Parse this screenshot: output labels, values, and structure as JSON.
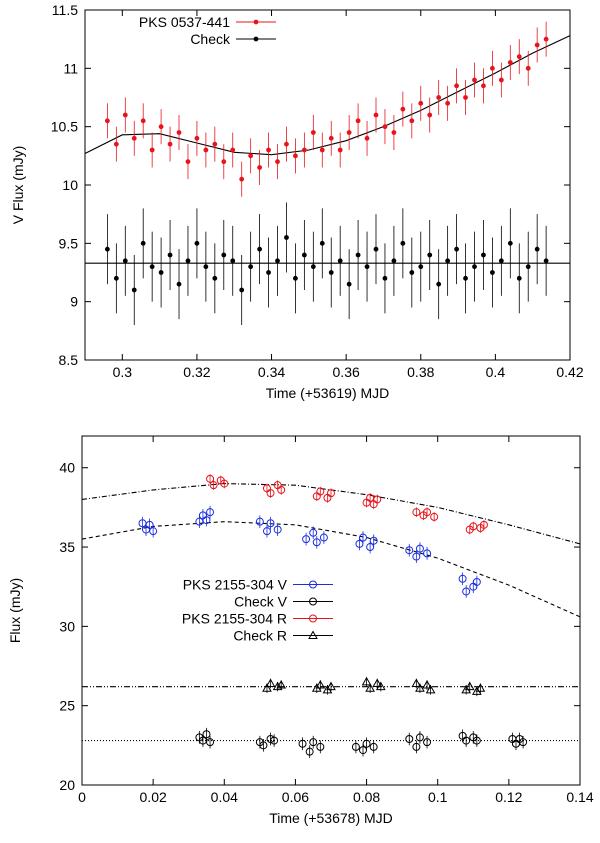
{
  "chart_data": [
    {
      "type": "scatter",
      "xlabel": "Time (+53619) MJD",
      "ylabel": "V Flux (mJy)",
      "xlim": [
        0.29,
        0.42
      ],
      "xticks": [
        0.3,
        0.32,
        0.34,
        0.36,
        0.38,
        0.4,
        0.42
      ],
      "ylim": [
        8.5,
        11.5
      ],
      "yticks": [
        8.5,
        9,
        9.5,
        10,
        10.5,
        11,
        11.5
      ],
      "legend": "upper left",
      "series": [
        {
          "name": "PKS 0537-441",
          "color": "#e8141c",
          "marker": "dot",
          "error": 0.15,
          "x": [
            0.296,
            0.2984,
            0.3008,
            0.3032,
            0.3056,
            0.308,
            0.3104,
            0.3128,
            0.3152,
            0.3176,
            0.32,
            0.3224,
            0.3248,
            0.3272,
            0.3296,
            0.332,
            0.3344,
            0.3368,
            0.3392,
            0.3416,
            0.344,
            0.3464,
            0.3488,
            0.3512,
            0.3536,
            0.356,
            0.3584,
            0.3608,
            0.3632,
            0.3656,
            0.368,
            0.3704,
            0.3728,
            0.3752,
            0.3776,
            0.38,
            0.3824,
            0.3848,
            0.3872,
            0.3896,
            0.392,
            0.3944,
            0.3968,
            0.3992,
            0.4016,
            0.404,
            0.4064,
            0.4088,
            0.4112,
            0.4136
          ],
          "values": [
            10.55,
            10.35,
            10.6,
            10.4,
            10.55,
            10.3,
            10.5,
            10.35,
            10.45,
            10.2,
            10.4,
            10.3,
            10.35,
            10.2,
            10.3,
            10.05,
            10.25,
            10.15,
            10.3,
            10.2,
            10.35,
            10.25,
            10.3,
            10.45,
            10.3,
            10.4,
            10.3,
            10.45,
            10.55,
            10.4,
            10.6,
            10.5,
            10.45,
            10.65,
            10.55,
            10.7,
            10.6,
            10.75,
            10.7,
            10.85,
            10.75,
            10.9,
            10.85,
            11.0,
            10.9,
            11.05,
            11.1,
            11.0,
            11.2,
            11.25
          ]
        },
        {
          "name": "Check",
          "color": "#000000",
          "marker": "dot",
          "error": 0.3,
          "x": [
            0.296,
            0.2984,
            0.3008,
            0.3032,
            0.3056,
            0.308,
            0.3104,
            0.3128,
            0.3152,
            0.3176,
            0.32,
            0.3224,
            0.3248,
            0.3272,
            0.3296,
            0.332,
            0.3344,
            0.3368,
            0.3392,
            0.3416,
            0.344,
            0.3464,
            0.3488,
            0.3512,
            0.3536,
            0.356,
            0.3584,
            0.3608,
            0.3632,
            0.3656,
            0.368,
            0.3704,
            0.3728,
            0.3752,
            0.3776,
            0.38,
            0.3824,
            0.3848,
            0.3872,
            0.3896,
            0.392,
            0.3944,
            0.3968,
            0.3992,
            0.4016,
            0.404,
            0.4064,
            0.4088,
            0.4112,
            0.4136
          ],
          "values": [
            9.45,
            9.2,
            9.35,
            9.1,
            9.5,
            9.3,
            9.25,
            9.4,
            9.15,
            9.35,
            9.5,
            9.3,
            9.2,
            9.4,
            9.35,
            9.1,
            9.3,
            9.45,
            9.25,
            9.35,
            9.55,
            9.2,
            9.4,
            9.3,
            9.5,
            9.25,
            9.35,
            9.15,
            9.4,
            9.3,
            9.45,
            9.2,
            9.35,
            9.5,
            9.25,
            9.3,
            9.4,
            9.15,
            9.35,
            9.45,
            9.2,
            9.3,
            9.4,
            9.25,
            9.35,
            9.5,
            9.2,
            9.3,
            9.45,
            9.35
          ]
        }
      ],
      "fits": [
        {
          "color": "#000000",
          "dash": "none",
          "x": [
            0.29,
            0.3,
            0.31,
            0.32,
            0.33,
            0.34,
            0.35,
            0.36,
            0.37,
            0.38,
            0.39,
            0.4,
            0.41,
            0.42
          ],
          "values": [
            10.27,
            10.43,
            10.44,
            10.36,
            10.28,
            10.26,
            10.3,
            10.38,
            10.5,
            10.64,
            10.8,
            10.96,
            11.13,
            11.28
          ]
        },
        {
          "color": "#000000",
          "dash": "none",
          "x": [
            0.29,
            0.42
          ],
          "values": [
            9.33,
            9.33
          ]
        }
      ]
    },
    {
      "type": "scatter",
      "xlabel": "Time (+53678) MJD",
      "ylabel": "Flux (mJy)",
      "xlim": [
        0,
        0.14
      ],
      "xticks": [
        0,
        0.02,
        0.04,
        0.06,
        0.08,
        0.1,
        0.12,
        0.14
      ],
      "ylim": [
        20,
        42
      ],
      "yticks": [
        20,
        25,
        30,
        35,
        40
      ],
      "legend": "center left",
      "series": [
        {
          "name": "PKS 2155-304 V",
          "color": "#1a2ee0",
          "marker": "circle",
          "error": 0.4,
          "x": [
            0.017,
            0.018,
            0.019,
            0.02,
            0.033,
            0.034,
            0.035,
            0.036,
            0.05,
            0.052,
            0.053,
            0.055,
            0.063,
            0.065,
            0.066,
            0.068,
            0.078,
            0.079,
            0.081,
            0.082,
            0.092,
            0.094,
            0.095,
            0.097,
            0.107,
            0.108,
            0.11,
            0.111
          ],
          "values": [
            36.5,
            36.1,
            36.4,
            36.0,
            36.6,
            37.0,
            36.7,
            37.2,
            36.6,
            36.0,
            36.5,
            36.1,
            35.5,
            35.9,
            35.3,
            35.6,
            35.2,
            35.6,
            35.0,
            35.4,
            34.8,
            34.4,
            34.9,
            34.6,
            33.0,
            32.2,
            32.5,
            32.8
          ]
        },
        {
          "name": "Check V",
          "color": "#000000",
          "marker": "circle",
          "error": 0.4,
          "x": [
            0.033,
            0.034,
            0.035,
            0.036,
            0.05,
            0.051,
            0.053,
            0.054,
            0.062,
            0.064,
            0.065,
            0.067,
            0.077,
            0.079,
            0.08,
            0.082,
            0.092,
            0.094,
            0.095,
            0.097,
            0.107,
            0.108,
            0.11,
            0.111,
            0.121,
            0.122,
            0.123,
            0.124
          ],
          "values": [
            23.0,
            22.8,
            23.2,
            22.7,
            22.7,
            22.5,
            22.9,
            22.8,
            22.6,
            22.1,
            22.7,
            22.4,
            22.4,
            22.2,
            22.6,
            22.4,
            22.9,
            22.4,
            23.0,
            22.7,
            23.1,
            22.8,
            23.0,
            22.8,
            22.9,
            22.6,
            22.9,
            22.7
          ]
        },
        {
          "name": "PKS 2155-304 R",
          "color": "#e8141c",
          "marker": "circle",
          "error": 0.3,
          "x": [
            0.036,
            0.037,
            0.039,
            0.04,
            0.052,
            0.053,
            0.055,
            0.056,
            0.066,
            0.067,
            0.069,
            0.07,
            0.08,
            0.081,
            0.082,
            0.083,
            0.094,
            0.096,
            0.097,
            0.099,
            0.109,
            0.11,
            0.112,
            0.113
          ],
          "values": [
            39.3,
            38.9,
            39.2,
            39.0,
            38.7,
            38.4,
            38.9,
            38.6,
            38.2,
            38.5,
            38.1,
            38.4,
            37.8,
            38.1,
            37.7,
            38.0,
            37.2,
            37.0,
            37.2,
            36.9,
            36.1,
            36.3,
            36.2,
            36.4
          ]
        },
        {
          "name": "Check R",
          "color": "#000000",
          "marker": "triangle",
          "error": 0.3,
          "x": [
            0.052,
            0.053,
            0.055,
            0.056,
            0.066,
            0.067,
            0.069,
            0.07,
            0.08,
            0.081,
            0.083,
            0.084,
            0.094,
            0.095,
            0.097,
            0.098,
            0.108,
            0.109,
            0.111,
            0.112
          ],
          "values": [
            26.1,
            26.4,
            26.2,
            26.3,
            26.1,
            26.3,
            26.0,
            26.2,
            26.5,
            26.1,
            26.4,
            26.2,
            26.4,
            26.1,
            26.3,
            26.0,
            26.0,
            26.2,
            25.9,
            26.1
          ]
        }
      ],
      "fits": [
        {
          "color": "#000000",
          "dash": "4,3",
          "x": [
            0,
            0.02,
            0.04,
            0.06,
            0.08,
            0.1,
            0.12,
            0.14
          ],
          "values": [
            35.5,
            36.3,
            36.6,
            36.4,
            35.6,
            34.3,
            32.6,
            30.6
          ]
        },
        {
          "color": "#000000",
          "dash": "5,2,1,2",
          "x": [
            0,
            0.02,
            0.04,
            0.06,
            0.08,
            0.1,
            0.12,
            0.14
          ],
          "values": [
            38.0,
            38.6,
            39.0,
            38.9,
            38.3,
            37.5,
            36.4,
            35.2
          ]
        },
        {
          "color": "#000000",
          "dash": "6,2,1,2,1,2",
          "x": [
            0,
            0.14
          ],
          "values": [
            26.2,
            26.2
          ]
        },
        {
          "color": "#000000",
          "dash": "1,2",
          "x": [
            0,
            0.14
          ],
          "values": [
            22.8,
            22.8
          ]
        }
      ]
    }
  ]
}
